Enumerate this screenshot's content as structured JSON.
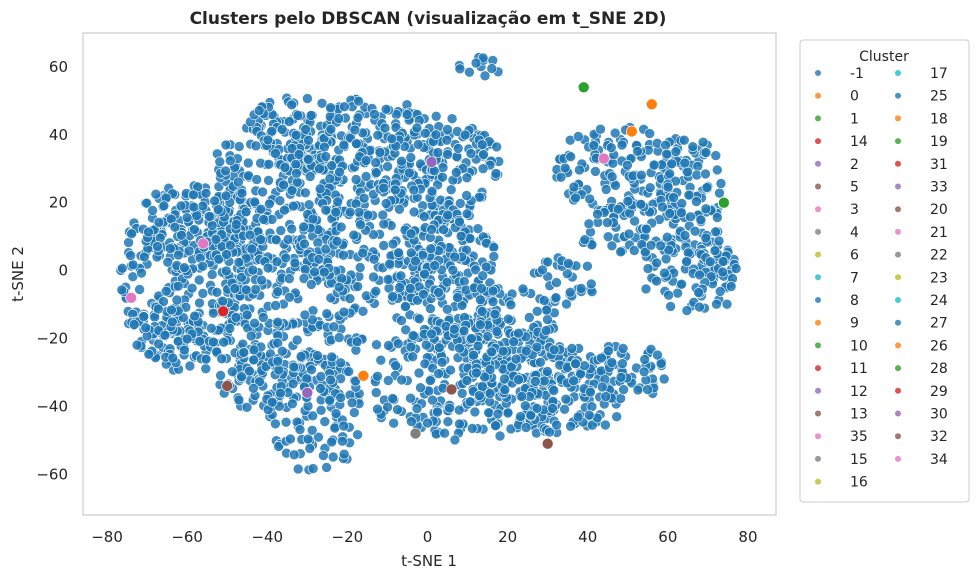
{
  "chart_data": {
    "type": "scatter",
    "title": "Clusters pelo DBSCAN (visualização em t_SNE 2D)",
    "xlabel": "t-SNE 1",
    "ylabel": "t-SNE 2",
    "xlim": [
      -86,
      87
    ],
    "ylim": [
      -72,
      70
    ],
    "xticks": [
      -80,
      -60,
      -40,
      -20,
      0,
      20,
      40,
      60,
      80
    ],
    "yticks": [
      -60,
      -40,
      -20,
      0,
      20,
      40,
      60
    ],
    "grid": false,
    "legend": {
      "title": "Cluster",
      "placement": "outside-right",
      "columns": [
        [
          "-1",
          "0",
          "1",
          "14",
          "2",
          "5",
          "3",
          "4",
          "6",
          "7",
          "8",
          "9",
          "10",
          "11",
          "12",
          "13",
          "35",
          "15",
          "16"
        ],
        [
          "17",
          "25",
          "18",
          "19",
          "31",
          "33",
          "20",
          "21",
          "22",
          "23",
          "24",
          "27",
          "26",
          "28",
          "29",
          "30",
          "32",
          "34"
        ]
      ]
    },
    "palette": [
      "#1f77b4",
      "#ff7f0e",
      "#2ca02c",
      "#d62728",
      "#9467bd",
      "#8c564b",
      "#e377c2",
      "#7f7f7f",
      "#bcbd22",
      "#17becf"
    ],
    "noise_color": "#1f77b4",
    "noise_regions": [
      {
        "cx": -60,
        "cy": -2,
        "rx": 17,
        "ry": 28
      },
      {
        "cx": -55,
        "cy": 12,
        "rx": 16,
        "ry": 14
      },
      {
        "cx": -65,
        "cy": -18,
        "rx": 10,
        "ry": 8
      },
      {
        "cx": -38,
        "cy": 22,
        "rx": 18,
        "ry": 24
      },
      {
        "cx": -32,
        "cy": 40,
        "rx": 14,
        "ry": 12
      },
      {
        "cx": -15,
        "cy": 35,
        "rx": 20,
        "ry": 16
      },
      {
        "cx": 3,
        "cy": 30,
        "rx": 16,
        "ry": 16
      },
      {
        "cx": -10,
        "cy": 8,
        "rx": 22,
        "ry": 18
      },
      {
        "cx": -35,
        "cy": -15,
        "rx": 20,
        "ry": 20
      },
      {
        "cx": -28,
        "cy": -42,
        "rx": 12,
        "ry": 18
      },
      {
        "cx": -40,
        "cy": -32,
        "rx": 12,
        "ry": 10
      },
      {
        "cx": 5,
        "cy": -5,
        "rx": 14,
        "ry": 22
      },
      {
        "cx": 10,
        "cy": -32,
        "rx": 28,
        "ry": 18
      },
      {
        "cx": 30,
        "cy": -35,
        "rx": 22,
        "ry": 14
      },
      {
        "cx": 48,
        "cy": -30,
        "rx": 12,
        "ry": 9
      },
      {
        "cx": 18,
        "cy": -15,
        "rx": 14,
        "ry": 12
      },
      {
        "cx": 50,
        "cy": 30,
        "rx": 18,
        "ry": 14
      },
      {
        "cx": 65,
        "cy": 22,
        "rx": 10,
        "ry": 18
      },
      {
        "cx": 65,
        "cy": 0,
        "rx": 12,
        "ry": 12
      },
      {
        "cx": 72,
        "cy": -2,
        "rx": 6,
        "ry": 9
      },
      {
        "cx": 48,
        "cy": 12,
        "rx": 10,
        "ry": 9
      },
      {
        "cx": 34,
        "cy": -3,
        "rx": 8,
        "ry": 7
      },
      {
        "cx": 13,
        "cy": 60,
        "rx": 7,
        "ry": 3
      }
    ],
    "highlights": [
      {
        "label": "2",
        "x": 1,
        "y": 32
      },
      {
        "label": "3",
        "x": -56,
        "y": 8
      },
      {
        "label": "3",
        "x": -74,
        "y": -8
      },
      {
        "label": "3",
        "x": 44,
        "y": 33
      },
      {
        "label": "1",
        "x": 74,
        "y": 20
      },
      {
        "label": "1",
        "x": 39,
        "y": 54
      },
      {
        "label": "0",
        "x": 51,
        "y": 41
      },
      {
        "label": "0",
        "x": 56,
        "y": 49
      },
      {
        "label": "0",
        "x": -16,
        "y": -31
      },
      {
        "label": "14",
        "x": -51,
        "y": -12
      },
      {
        "label": "5",
        "x": -50,
        "y": -34
      },
      {
        "label": "5",
        "x": 6,
        "y": -35
      },
      {
        "label": "12",
        "x": -30,
        "y": -36
      },
      {
        "label": "13",
        "x": 30,
        "y": -51
      },
      {
        "label": "15",
        "x": -3,
        "y": -48
      }
    ]
  }
}
